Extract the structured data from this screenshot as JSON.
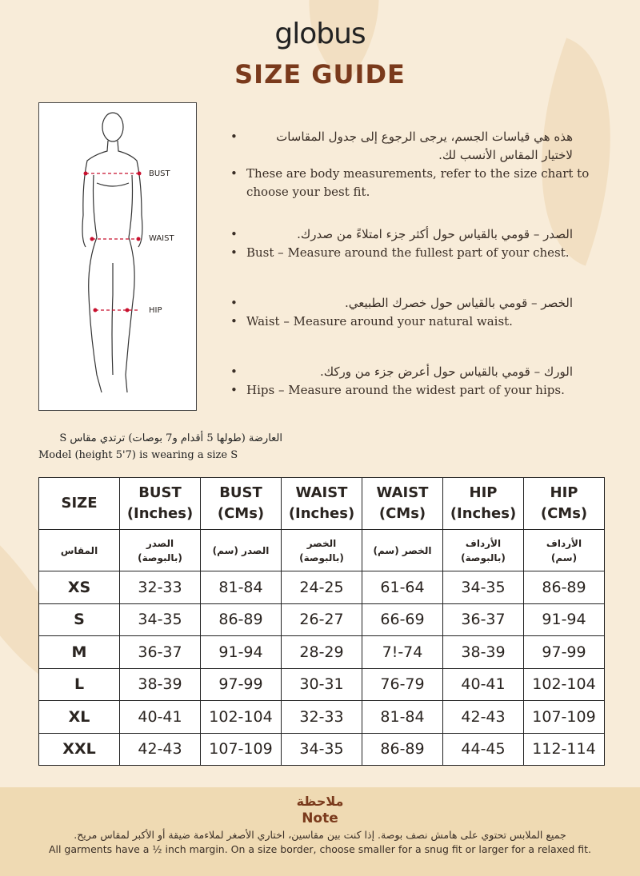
{
  "brand": "globus",
  "title": "SIZE GUIDE",
  "figure": {
    "labels": [
      "BUST",
      "WAIST",
      "HIP"
    ]
  },
  "bullets": [
    {
      "ar": "هذه هي قياسات الجسم، يرجى الرجوع إلى جدول المقاسات لاختيار المقاس الأنسب لك.",
      "en": "These are body measurements, refer to the size chart to choose your best fit."
    },
    {
      "ar": "الصدر – قومي بالقياس حول أكثر جزء امتلاءً من صدرك.",
      "en": "Bust – Measure around the fullest part of your chest."
    },
    {
      "ar": "الخصر – قومي بالقياس حول خصرك الطبيعي.",
      "en": "Waist – Measure around your natural waist."
    },
    {
      "ar": "الورك – قومي بالقياس حول أعرض جزء من وركك.",
      "en": "Hips – Measure around the widest part of your hips."
    }
  ],
  "model": {
    "ar": "العارضة (طولها 5 أقدام و7 بوصات) ترتدي مقاس S",
    "en": "Model (height 5'7) is wearing a size S"
  },
  "table": {
    "headers": [
      [
        "SIZE",
        ""
      ],
      [
        "BUST",
        "(Inches)"
      ],
      [
        "BUST",
        "(CMs)"
      ],
      [
        "WAIST",
        "(Inches)"
      ],
      [
        "WAIST",
        "(CMs)"
      ],
      [
        "HIP",
        "(Inches)"
      ],
      [
        "HIP",
        "(CMs)"
      ]
    ],
    "headers_ar": [
      "المقاس",
      "الصدر (بالبوصة)",
      "الصدر (سم)",
      "الخصر (بالبوصة)",
      "الخصر (سم)",
      "الأرداف (بالبوصة)",
      "الأرداف (سم)"
    ],
    "rows": [
      [
        "XS",
        "32-33",
        "81-84",
        "24-25",
        "61-64",
        "34-35",
        "86-89"
      ],
      [
        "S",
        "34-35",
        "86-89",
        "26-27",
        "66-69",
        "36-37",
        "91-94"
      ],
      [
        "M",
        "36-37",
        "91-94",
        "28-29",
        "7!-74",
        "38-39",
        "97-99"
      ],
      [
        "L",
        "38-39",
        "97-99",
        "30-31",
        "76-79",
        "40-41",
        "102-104"
      ],
      [
        "XL",
        "40-41",
        "102-104",
        "32-33",
        "81-84",
        "42-43",
        "107-109"
      ],
      [
        "XXL",
        "42-43",
        "107-109",
        "34-35",
        "86-89",
        "44-45",
        "112-114"
      ]
    ]
  },
  "note": {
    "title_ar": "ملاحظة",
    "title_en": "Note",
    "text_ar": "جميع الملابس تحتوي على هامش نصف بوصة. إذا كنت بين مقاسين، اختاري الأصغر لملاءمة ضيقة أو الأكبر لمقاس مريح.",
    "text_en": "All garments have a ½ inch margin. On a size border, choose smaller for a snug fit or larger for a relaxed fit."
  },
  "colors": {
    "background": "#f8ecd9",
    "accent": "#7a3a1c",
    "note_band": "#efdab3",
    "marker": "#c8102e"
  }
}
